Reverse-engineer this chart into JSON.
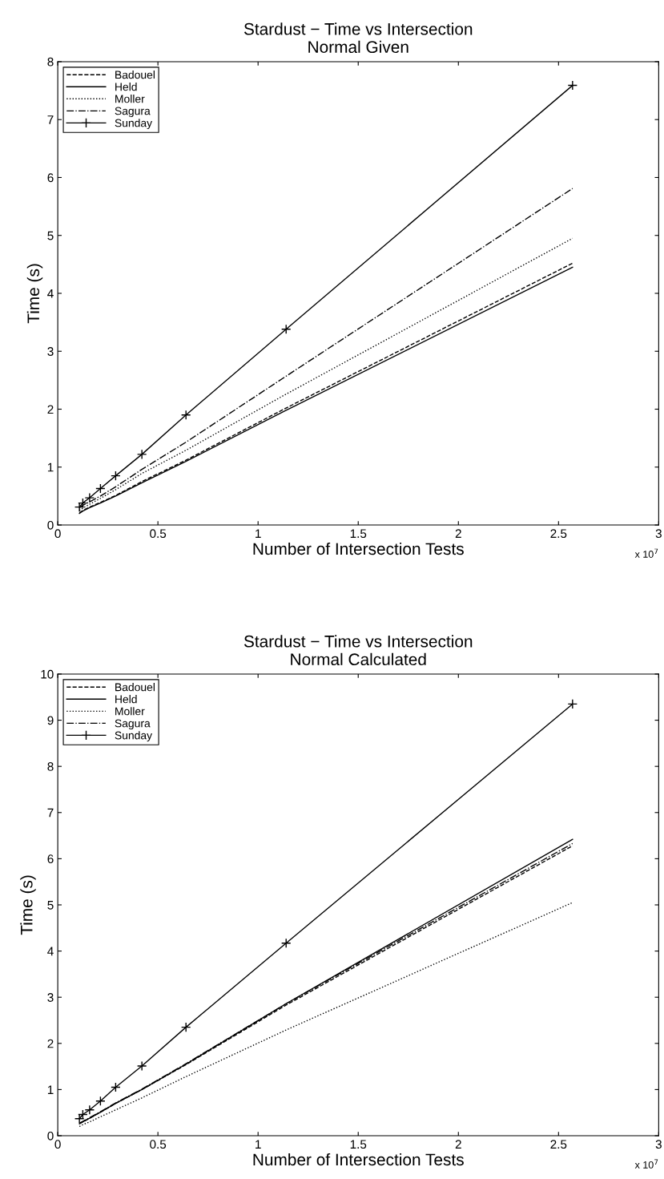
{
  "chart_data": [
    {
      "type": "line",
      "title": "Stardust − Time vs Intersection\nNormal Given",
      "xlabel": "Number of Intersection Tests",
      "ylabel": "Time (s)",
      "x": [
        0.108,
        0.125,
        0.159,
        0.213,
        0.289,
        0.42,
        0.64,
        1.14,
        2.57
      ],
      "series": [
        {
          "name": "Badouel",
          "color": "#000000",
          "line_style": "dashed",
          "marker": "none",
          "values": [
            0.21,
            0.25,
            0.31,
            0.39,
            0.51,
            0.75,
            1.12,
            2.02,
            4.52
          ]
        },
        {
          "name": "Held",
          "color": "#000000",
          "line_style": "solid",
          "marker": "none",
          "values": [
            0.2,
            0.24,
            0.3,
            0.38,
            0.5,
            0.73,
            1.1,
            1.98,
            4.45
          ]
        },
        {
          "name": "Moller",
          "color": "#000000",
          "line_style": "dotted",
          "marker": "none",
          "values": [
            0.25,
            0.29,
            0.36,
            0.46,
            0.61,
            0.89,
            1.29,
            2.26,
            4.95
          ]
        },
        {
          "name": "Sagura",
          "color": "#000000",
          "line_style": "dashdot",
          "marker": "none",
          "values": [
            0.3,
            0.34,
            0.4,
            0.5,
            0.66,
            0.96,
            1.43,
            2.57,
            5.81
          ]
        },
        {
          "name": "Sunday",
          "color": "#000000",
          "line_style": "solid",
          "marker": "cross",
          "values": [
            0.31,
            0.38,
            0.47,
            0.63,
            0.85,
            1.22,
            1.9,
            3.38,
            7.59
          ]
        }
      ],
      "xlim": [
        0,
        3
      ],
      "xticks": [
        0,
        0.5,
        1,
        1.5,
        2,
        2.5,
        3
      ],
      "ylim": [
        0,
        8
      ],
      "yticks": [
        0,
        1,
        2,
        3,
        4,
        5,
        6,
        7,
        8
      ],
      "annotations": [
        "x 10$^{7}$"
      ],
      "legend": "top left",
      "grid": false
    },
    {
      "type": "line",
      "title": "Stardust − Time vs Intersection\nNormal Calculated",
      "xlabel": "Number of Intersection Tests",
      "ylabel": "Time (s)",
      "x": [
        0.108,
        0.125,
        0.159,
        0.213,
        0.289,
        0.42,
        0.64,
        1.14,
        2.57
      ],
      "series": [
        {
          "name": "Badouel",
          "color": "#000000",
          "line_style": "dashed",
          "marker": "none",
          "values": [
            0.26,
            0.3,
            0.38,
            0.51,
            0.7,
            1.0,
            1.54,
            2.83,
            6.28
          ]
        },
        {
          "name": "Held",
          "color": "#000000",
          "line_style": "solid",
          "marker": "none",
          "values": [
            0.26,
            0.3,
            0.38,
            0.51,
            0.7,
            1.0,
            1.55,
            2.86,
            6.42
          ]
        },
        {
          "name": "Moller",
          "color": "#000000",
          "line_style": "dotted",
          "marker": "none",
          "values": [
            0.2,
            0.24,
            0.3,
            0.41,
            0.56,
            0.82,
            1.28,
            2.29,
            5.05
          ]
        },
        {
          "name": "Sagura",
          "color": "#000000",
          "line_style": "dashdot",
          "marker": "none",
          "values": [
            0.27,
            0.31,
            0.39,
            0.52,
            0.71,
            1.01,
            1.56,
            2.86,
            6.33
          ]
        },
        {
          "name": "Sunday",
          "color": "#000000",
          "line_style": "solid",
          "marker": "cross",
          "values": [
            0.37,
            0.46,
            0.56,
            0.75,
            1.05,
            1.51,
            2.35,
            4.17,
            9.35
          ]
        }
      ],
      "xlim": [
        0,
        3
      ],
      "xticks": [
        0,
        0.5,
        1,
        1.5,
        2,
        2.5,
        3
      ],
      "ylim": [
        0,
        10
      ],
      "yticks": [
        0,
        1,
        2,
        3,
        4,
        5,
        6,
        7,
        8,
        9,
        10
      ],
      "annotations": [
        "x 10$^{7}$"
      ],
      "legend": "top left",
      "grid": false
    }
  ]
}
